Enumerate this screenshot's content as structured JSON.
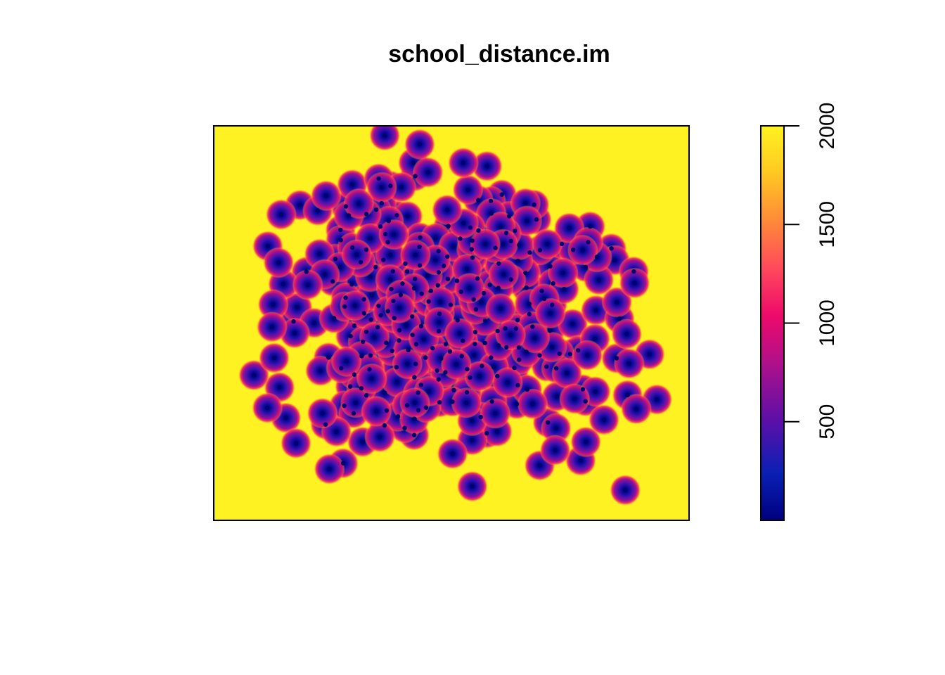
{
  "chart_data": {
    "type": "heatmap",
    "title": "school_distance.im",
    "xlabel": "",
    "ylabel": "",
    "colorbar": {
      "range": [
        0,
        2000
      ],
      "ticks": [
        500,
        1000,
        1500,
        2000
      ],
      "tick_labels": [
        "500",
        "1000",
        "1500",
        "2000"
      ],
      "colors": [
        "#000080",
        "#0000c8",
        "#5a10a8",
        "#b0108a",
        "#ee0a6a",
        "#ff4060",
        "#ff7a40",
        "#ffa52a",
        "#ffd020",
        "#fff222"
      ]
    },
    "background_value": 2000,
    "grid": false,
    "legend": "right"
  }
}
